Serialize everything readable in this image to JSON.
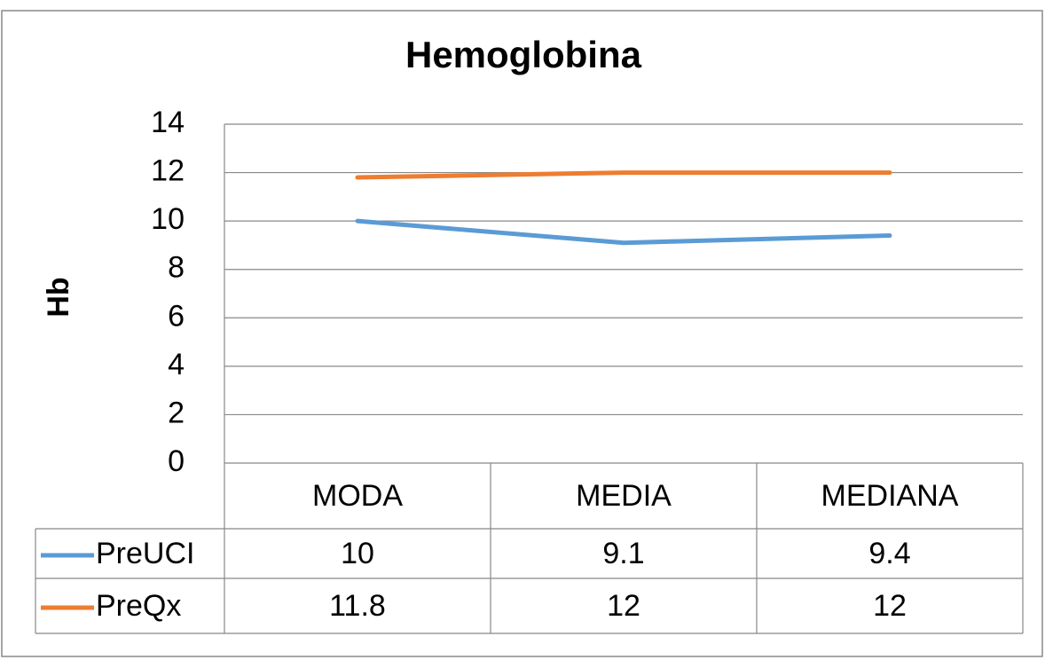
{
  "chart_data": {
    "type": "line",
    "title": "Hemoglobina",
    "y_label": "Hb",
    "categories": [
      "MODA",
      "MEDIA",
      "MEDIANA"
    ],
    "series": [
      {
        "name": "PreUCI",
        "color": "#5b9bd5",
        "values": [
          10,
          9.1,
          9.4
        ]
      },
      {
        "name": "PreQx",
        "color": "#ed7d31",
        "values": [
          11.8,
          12,
          12
        ]
      }
    ],
    "ylim": [
      0,
      14
    ],
    "yticks": [
      0,
      2,
      4,
      6,
      8,
      10,
      12,
      14
    ],
    "grid": true,
    "data_table": true
  }
}
